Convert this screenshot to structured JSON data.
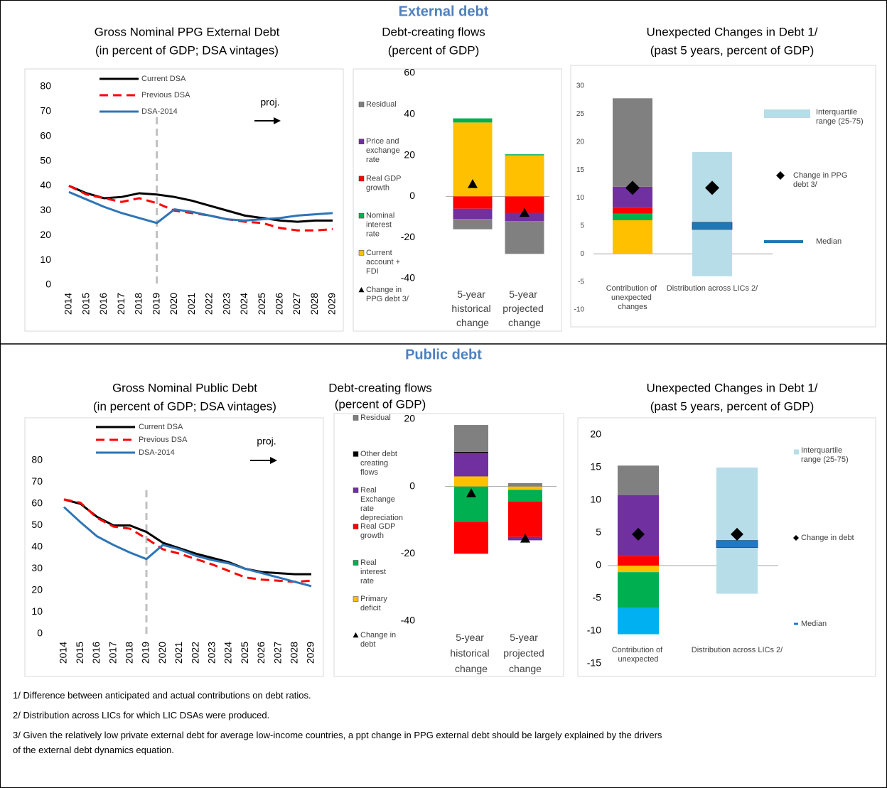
{
  "sections": [
    "External debt",
    "Public debt"
  ],
  "chart_data": [
    {
      "type": "line",
      "title": "Gross Nominal PPG External Debt",
      "subtitle": "(in percent of GDP; DSA vintages)",
      "categories": [
        "2014",
        "2015",
        "2016",
        "2017",
        "2018",
        "2019",
        "2020",
        "2021",
        "2022",
        "2023",
        "2024",
        "2025",
        "2026",
        "2027",
        "2028",
        "2029"
      ],
      "series": [
        {
          "name": "Current DSA",
          "color": "#000000",
          "dash": false,
          "values": [
            40,
            37,
            35,
            35.5,
            37,
            36.5,
            35.5,
            34,
            32,
            30,
            28,
            27,
            26,
            25.5,
            26,
            26
          ]
        },
        {
          "name": "Previous DSA",
          "color": "#ff0000",
          "dash": true,
          "values": [
            40,
            36.5,
            35,
            33.5,
            35,
            33,
            30,
            29,
            28,
            26.5,
            25.5,
            25,
            23,
            22,
            22,
            22.5
          ]
        },
        {
          "name": "DSA-2014",
          "color": "#2e75b6",
          "dash": false,
          "values": [
            37.5,
            34.5,
            31.5,
            29,
            27,
            25,
            30.5,
            29.5,
            28,
            26.5,
            26,
            26.5,
            27,
            28,
            28.5,
            29
          ]
        }
      ],
      "ylim": [
        0,
        80
      ],
      "yticks": [
        0,
        10,
        20,
        30,
        40,
        50,
        60,
        70,
        80
      ],
      "annotation": "proj.",
      "projection_start": "2019"
    },
    {
      "type": "stacked_bar",
      "title": "Debt-creating flows",
      "subtitle": "(percent of GDP)",
      "categories": [
        "5-year historical change",
        "5-year projected change"
      ],
      "series": [
        {
          "name": "Residual",
          "color": "#808080",
          "values": [
            -5,
            -16
          ]
        },
        {
          "name": "Price and exchange rate",
          "color": "#7030a0",
          "values": [
            -5,
            -4
          ]
        },
        {
          "name": "Real GDP growth",
          "color": "#ff0000",
          "values": [
            -6,
            -8
          ]
        },
        {
          "name": "Nominal interest rate",
          "color": "#00b050",
          "values": [
            2,
            0.5
          ]
        },
        {
          "name": "Current account + FDI",
          "color": "#ffc000",
          "values": [
            36,
            20
          ]
        }
      ],
      "marker_series": {
        "name": "Change in PPG debt 3/",
        "color": "#000000",
        "values": [
          6,
          -8
        ]
      },
      "ylim": [
        -40,
        60
      ],
      "yticks": [
        -40,
        -20,
        0,
        20,
        40,
        60
      ]
    },
    {
      "type": "unexpected",
      "title": "Unexpected Changes in Debt 1/",
      "subtitle": "(past 5 years, percent of GDP)",
      "categories": [
        "Contribution of unexpected changes",
        "Distribution across LICs 2/"
      ],
      "contribution": [
        {
          "color": "#ffc000",
          "value": 6
        },
        {
          "color": "#00b050",
          "value": 1.2
        },
        {
          "color": "#ff0000",
          "value": 1
        },
        {
          "color": "#7030a0",
          "value": 3.8
        },
        {
          "color": "#808080",
          "value": 15.8
        }
      ],
      "iqr": {
        "name": "Interquartile range (25-75)",
        "color": "#b7dde8",
        "low": -4,
        "high": 18.2
      },
      "median": {
        "name": "Median",
        "color": "#1f78b4",
        "value": 5
      },
      "change": {
        "name": "Change in PPG debt 3/",
        "color": "#000000",
        "values": [
          11.8,
          11.8
        ]
      },
      "ylim": [
        -10,
        30
      ],
      "yticks": [
        -10,
        -5,
        0,
        5,
        10,
        15,
        20,
        25,
        30
      ]
    },
    {
      "type": "line",
      "title": "Gross Nominal Public Debt",
      "subtitle": "(in percent of GDP; DSA vintages)",
      "categories": [
        "2014",
        "2015",
        "2016",
        "2017",
        "2018",
        "2019",
        "2020",
        "2021",
        "2022",
        "2023",
        "2024",
        "2025",
        "2026",
        "2027",
        "2028",
        "2029"
      ],
      "series": [
        {
          "name": "Current DSA",
          "color": "#000000",
          "dash": false,
          "values": [
            62,
            60,
            54,
            50,
            50,
            47,
            42,
            39.5,
            37,
            35,
            33,
            30,
            28.5,
            28,
            27.5,
            27.5
          ]
        },
        {
          "name": "Previous DSA",
          "color": "#ff0000",
          "dash": true,
          "values": [
            62,
            60.5,
            53.5,
            49.5,
            48.5,
            44,
            39,
            37,
            34.5,
            32,
            29,
            26,
            25,
            24.5,
            24,
            24.5
          ]
        },
        {
          "name": "DSA-2014",
          "color": "#2e75b6",
          "dash": false,
          "values": [
            58.5,
            51.5,
            45,
            41,
            37.5,
            34.5,
            41,
            39,
            36,
            34,
            32.5,
            30,
            28,
            26,
            24,
            22
          ]
        }
      ],
      "ylim": [
        0,
        80
      ],
      "yticks": [
        0,
        10,
        20,
        30,
        40,
        50,
        60,
        70,
        80
      ],
      "annotation": "proj.",
      "projection_start": "2019"
    },
    {
      "type": "stacked_bar",
      "title": "Debt-creating flows",
      "subtitle": "(percent of GDP)",
      "categories": [
        "5-year historical change",
        "5-year projected change"
      ],
      "series": [
        {
          "name": "Residual",
          "color": "#808080",
          "values": [
            8,
            1
          ]
        },
        {
          "name": "Other debt creating flows",
          "color": "#000000",
          "values": [
            0.3,
            0
          ]
        },
        {
          "name": "Real Exchange rate depreciation",
          "color": "#7030a0",
          "values": [
            7,
            -1
          ]
        },
        {
          "name": "Real GDP growth",
          "color": "#ff0000",
          "values": [
            -9.5,
            -10.5
          ]
        },
        {
          "name": "Real interest rate",
          "color": "#00b050",
          "values": [
            -10.5,
            -3.5
          ]
        },
        {
          "name": "Primary deficit",
          "color": "#ffc000",
          "values": [
            3,
            -1
          ]
        }
      ],
      "marker_series": {
        "name": "Change in debt",
        "color": "#000000",
        "values": [
          -2,
          -15.5
        ]
      },
      "ylim": [
        -40,
        20
      ],
      "yticks": [
        -40,
        -20,
        0,
        20
      ]
    },
    {
      "type": "unexpected",
      "title": "Unexpected Changes in Debt 1/",
      "subtitle": "(past 5 years, percent of GDP)",
      "categories": [
        "Contribution of unexpected",
        "Distribution across LICs 2/"
      ],
      "contribution": [
        {
          "color": "#ffc000",
          "value": -1
        },
        {
          "color": "#00b050",
          "value": -5.5
        },
        {
          "color": "#00b0f0",
          "value": -4
        },
        {
          "color": "#ff0000",
          "value": 1.5
        },
        {
          "color": "#7030a0",
          "value": 9.3
        },
        {
          "color": "#808080",
          "value": 4.5
        }
      ],
      "iqr": {
        "name": "Interquartile range (25-75)",
        "color": "#b7dde8",
        "low": -4.3,
        "high": 15
      },
      "median": {
        "name": "Median",
        "color": "#1f78c8",
        "value": 3.3
      },
      "change": {
        "name": "Change in debt",
        "color": "#000000",
        "values": [
          4.8,
          4.8
        ]
      },
      "ylim": [
        -15,
        20
      ],
      "yticks": [
        -15,
        -10,
        -5,
        0,
        5,
        10,
        15,
        20
      ]
    }
  ],
  "footnotes": [
    "1/ Difference between anticipated and actual contributions on debt ratios.",
    "2/ Distribution across LICs for which LIC DSAs were produced.",
    "3/ Given the relatively low private external debt for average low-income countries, a ppt change in PPG external debt should be largely explained by the drivers of the external debt dynamics equation."
  ]
}
